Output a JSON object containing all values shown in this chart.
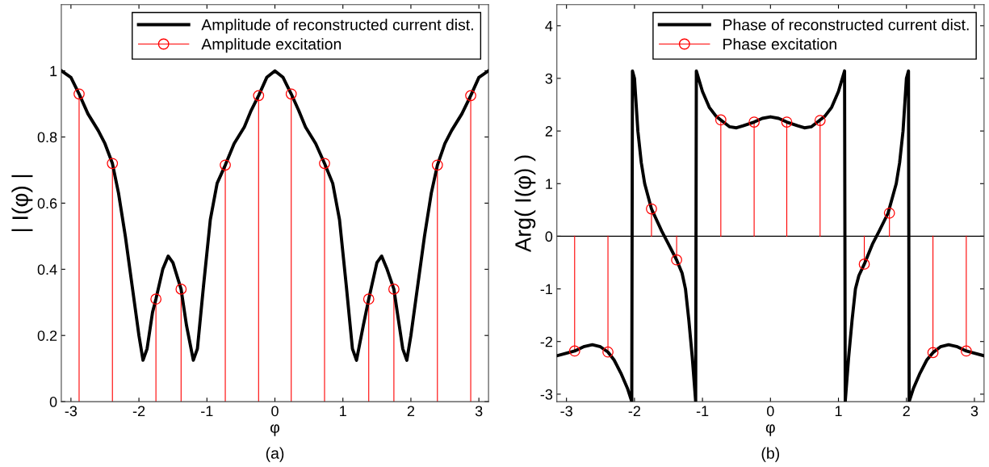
{
  "chart_data": [
    {
      "type": "line",
      "xlabel": "φ",
      "ylabel": "| I(φ) |",
      "annotations": [
        "(a)"
      ],
      "xlim": [
        -3.1416,
        3.1416
      ],
      "ylim": [
        0,
        1.2
      ],
      "xticks": [
        -3,
        -2,
        -1,
        0,
        1,
        2,
        3
      ],
      "yticks": [
        0,
        0.2,
        0.4,
        0.6,
        0.8,
        1
      ],
      "legend": "top right",
      "grid": false,
      "series": [
        {
          "name": "Amplitude of reconstructed current dist.",
          "color": "#000000",
          "marker": "none",
          "line_style": "solid",
          "x": [
            -3.14,
            -3.0,
            -2.88,
            -2.75,
            -2.6,
            -2.5,
            -2.39,
            -2.3,
            -2.2,
            -2.1,
            -2.0,
            -1.94,
            -1.88,
            -1.8,
            -1.75,
            -1.65,
            -1.57,
            -1.5,
            -1.38,
            -1.3,
            -1.2,
            -1.14,
            -1.05,
            -0.95,
            -0.85,
            -0.73,
            -0.6,
            -0.45,
            -0.35,
            -0.24,
            -0.12,
            0,
            0.12,
            0.24,
            0.35,
            0.45,
            0.6,
            0.73,
            0.85,
            0.95,
            1.05,
            1.14,
            1.2,
            1.3,
            1.38,
            1.5,
            1.57,
            1.65,
            1.75,
            1.8,
            1.88,
            1.94,
            2.0,
            2.1,
            2.2,
            2.3,
            2.39,
            2.5,
            2.6,
            2.75,
            2.88,
            3.0,
            3.14
          ],
          "values": [
            1.0,
            0.98,
            0.93,
            0.87,
            0.82,
            0.78,
            0.72,
            0.63,
            0.5,
            0.35,
            0.2,
            0.125,
            0.16,
            0.27,
            0.31,
            0.4,
            0.44,
            0.42,
            0.34,
            0.23,
            0.125,
            0.16,
            0.35,
            0.55,
            0.66,
            0.715,
            0.78,
            0.83,
            0.88,
            0.925,
            0.98,
            1.0,
            0.98,
            0.93,
            0.88,
            0.83,
            0.78,
            0.72,
            0.66,
            0.55,
            0.35,
            0.16,
            0.125,
            0.23,
            0.31,
            0.42,
            0.44,
            0.4,
            0.34,
            0.27,
            0.16,
            0.125,
            0.2,
            0.35,
            0.5,
            0.63,
            0.715,
            0.78,
            0.82,
            0.87,
            0.925,
            0.98,
            1.0
          ]
        },
        {
          "name": "Amplitude excitation",
          "color": "#ff0000",
          "type": "lollipop",
          "marker": "circle",
          "x": [
            -2.88,
            -2.39,
            -1.75,
            -1.38,
            -0.73,
            -0.24,
            0.24,
            0.73,
            1.38,
            1.75,
            2.39,
            2.88
          ],
          "values": [
            0.93,
            0.72,
            0.31,
            0.34,
            0.715,
            0.925,
            0.93,
            0.72,
            0.31,
            0.34,
            0.715,
            0.925
          ]
        }
      ]
    },
    {
      "type": "line",
      "xlabel": "φ",
      "ylabel": "Arg( I(φ) )",
      "annotations": [
        "(b)"
      ],
      "xlim": [
        -3.1416,
        3.1416
      ],
      "ylim": [
        -3.1416,
        4.4
      ],
      "xticks": [
        -3,
        -2,
        -1,
        0,
        1,
        2,
        3
      ],
      "yticks": [
        -3,
        -2,
        -1,
        0,
        1,
        2,
        3,
        4
      ],
      "legend": "top right",
      "grid": false,
      "ref_lines": [
        {
          "axis": "y",
          "value": 0,
          "label": null,
          "color": "#000000"
        }
      ],
      "series": [
        {
          "name": "Phase of reconstructed current dist.",
          "color": "#000000",
          "marker": "none",
          "line_style": "solid",
          "x": [
            -3.14,
            -3.0,
            -2.88,
            -2.75,
            -2.62,
            -2.5,
            -2.39,
            -2.3,
            -2.2,
            -2.1,
            -2.04,
            -2.03,
            -2.0,
            -1.95,
            -1.9,
            -1.85,
            -1.75,
            -1.6,
            -1.5,
            -1.38,
            -1.3,
            -1.25,
            -1.2,
            -1.15,
            -1.12,
            -1.1,
            -1.09,
            -1.0,
            -0.9,
            -0.8,
            -0.73,
            -0.6,
            -0.5,
            -0.4,
            -0.24,
            -0.12,
            0,
            0.12,
            0.24,
            0.4,
            0.5,
            0.6,
            0.73,
            0.8,
            0.9,
            1.0,
            1.09,
            1.1,
            1.12,
            1.15,
            1.2,
            1.25,
            1.3,
            1.38,
            1.5,
            1.6,
            1.73,
            1.85,
            1.9,
            1.95,
            2.0,
            2.03,
            2.04,
            2.1,
            2.2,
            2.3,
            2.39,
            2.5,
            2.62,
            2.75,
            2.88,
            3.0,
            3.14
          ],
          "values": [
            -2.27,
            -2.22,
            -2.18,
            -2.1,
            -2.06,
            -2.1,
            -2.2,
            -2.35,
            -2.6,
            -2.9,
            -3.14,
            3.14,
            3.0,
            2.0,
            1.4,
            1.0,
            0.52,
            0.1,
            -0.15,
            -0.45,
            -0.7,
            -1.0,
            -1.6,
            -2.3,
            -2.8,
            -3.14,
            3.14,
            2.75,
            2.45,
            2.28,
            2.21,
            2.08,
            2.06,
            2.1,
            2.17,
            2.24,
            2.27,
            2.24,
            2.17,
            2.1,
            2.06,
            2.08,
            2.21,
            2.28,
            2.45,
            2.75,
            3.14,
            -3.14,
            -2.8,
            -2.3,
            -1.6,
            -1.0,
            -0.75,
            -0.53,
            -0.15,
            0.1,
            0.44,
            1.0,
            1.4,
            2.0,
            3.0,
            3.14,
            -3.14,
            -2.9,
            -2.6,
            -2.35,
            -2.21,
            -2.1,
            -2.06,
            -2.1,
            -2.18,
            -2.22,
            -2.27
          ]
        },
        {
          "name": "Phase excitation",
          "color": "#ff0000",
          "type": "lollipop",
          "marker": "circle",
          "x": [
            -2.88,
            -2.39,
            -1.75,
            -1.38,
            -0.73,
            -0.24,
            0.24,
            0.73,
            1.38,
            1.75,
            2.39,
            2.88
          ],
          "values": [
            -2.18,
            -2.2,
            0.52,
            -0.45,
            2.21,
            2.17,
            2.17,
            2.2,
            -0.53,
            0.44,
            -2.21,
            -2.18
          ]
        }
      ]
    }
  ]
}
